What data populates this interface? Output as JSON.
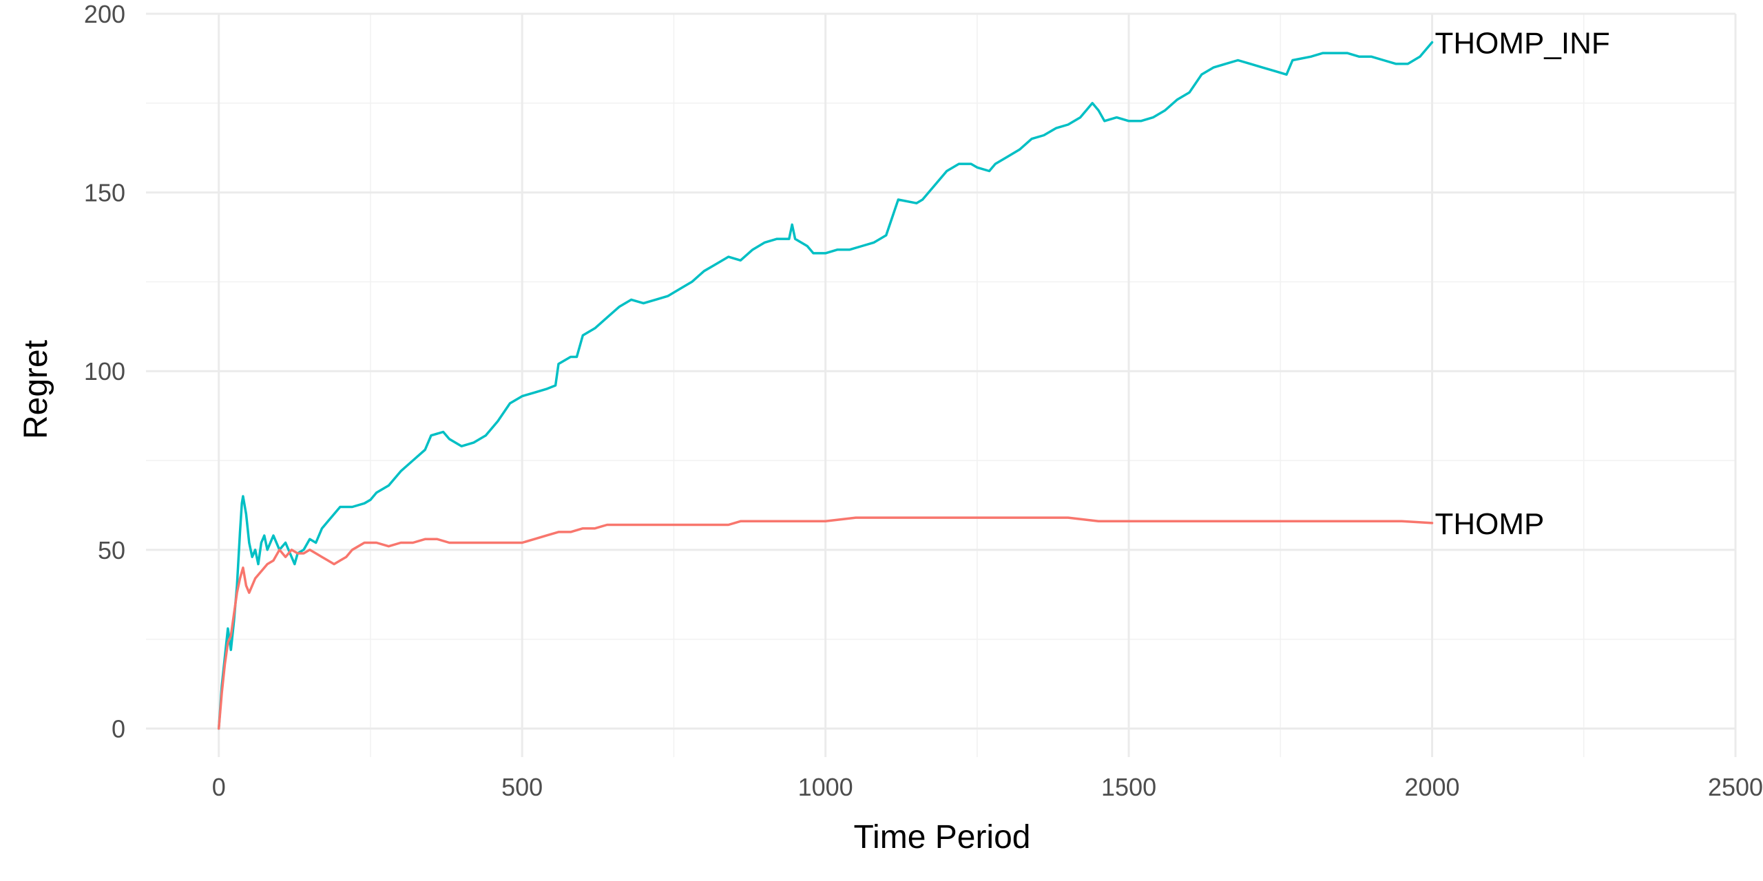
{
  "chart_data": {
    "type": "line",
    "title": "",
    "xlabel": "Time Period",
    "ylabel": "Regret",
    "xlim": [
      -120,
      2500
    ],
    "ylim": [
      -8,
      200
    ],
    "x_ticks": [
      0,
      500,
      1000,
      1500,
      2000,
      2500
    ],
    "x_tick_labels": [
      "0",
      "500",
      "1000",
      "1500",
      "2000",
      "2500"
    ],
    "y_ticks": [
      0,
      50,
      100,
      150,
      200
    ],
    "y_tick_labels": [
      "0",
      "50",
      "100",
      "150",
      "200"
    ],
    "grid": true,
    "legend": "none (series labelled at line ends)",
    "series": [
      {
        "name": "THOMP_INF",
        "color": "#00BFC4",
        "points": [
          [
            0,
            0
          ],
          [
            5,
            12
          ],
          [
            10,
            20
          ],
          [
            15,
            28
          ],
          [
            20,
            22
          ],
          [
            25,
            30
          ],
          [
            30,
            40
          ],
          [
            35,
            55
          ],
          [
            38,
            63
          ],
          [
            40,
            65
          ],
          [
            45,
            60
          ],
          [
            50,
            52
          ],
          [
            55,
            48
          ],
          [
            60,
            50
          ],
          [
            65,
            46
          ],
          [
            70,
            52
          ],
          [
            75,
            54
          ],
          [
            80,
            50
          ],
          [
            90,
            54
          ],
          [
            100,
            50
          ],
          [
            110,
            52
          ],
          [
            120,
            48
          ],
          [
            125,
            46
          ],
          [
            130,
            49
          ],
          [
            140,
            50
          ],
          [
            150,
            53
          ],
          [
            160,
            52
          ],
          [
            170,
            56
          ],
          [
            180,
            58
          ],
          [
            190,
            60
          ],
          [
            200,
            62
          ],
          [
            220,
            62
          ],
          [
            240,
            63
          ],
          [
            250,
            64
          ],
          [
            260,
            66
          ],
          [
            280,
            68
          ],
          [
            300,
            72
          ],
          [
            320,
            75
          ],
          [
            340,
            78
          ],
          [
            350,
            82
          ],
          [
            370,
            83
          ],
          [
            380,
            81
          ],
          [
            400,
            79
          ],
          [
            420,
            80
          ],
          [
            440,
            82
          ],
          [
            460,
            86
          ],
          [
            480,
            91
          ],
          [
            500,
            93
          ],
          [
            520,
            94
          ],
          [
            540,
            95
          ],
          [
            555,
            96
          ],
          [
            560,
            102
          ],
          [
            580,
            104
          ],
          [
            590,
            104
          ],
          [
            600,
            110
          ],
          [
            620,
            112
          ],
          [
            640,
            115
          ],
          [
            660,
            118
          ],
          [
            680,
            120
          ],
          [
            700,
            119
          ],
          [
            720,
            120
          ],
          [
            740,
            121
          ],
          [
            760,
            123
          ],
          [
            780,
            125
          ],
          [
            800,
            128
          ],
          [
            820,
            130
          ],
          [
            840,
            132
          ],
          [
            860,
            131
          ],
          [
            880,
            134
          ],
          [
            900,
            136
          ],
          [
            920,
            137
          ],
          [
            940,
            137
          ],
          [
            945,
            141
          ],
          [
            950,
            137
          ],
          [
            970,
            135
          ],
          [
            980,
            133
          ],
          [
            1000,
            133
          ],
          [
            1020,
            134
          ],
          [
            1040,
            134
          ],
          [
            1060,
            135
          ],
          [
            1080,
            136
          ],
          [
            1100,
            138
          ],
          [
            1110,
            143
          ],
          [
            1120,
            148
          ],
          [
            1150,
            147
          ],
          [
            1160,
            148
          ],
          [
            1180,
            152
          ],
          [
            1200,
            156
          ],
          [
            1220,
            158
          ],
          [
            1240,
            158
          ],
          [
            1250,
            157
          ],
          [
            1270,
            156
          ],
          [
            1280,
            158
          ],
          [
            1300,
            160
          ],
          [
            1320,
            162
          ],
          [
            1340,
            165
          ],
          [
            1360,
            166
          ],
          [
            1380,
            168
          ],
          [
            1400,
            169
          ],
          [
            1420,
            171
          ],
          [
            1430,
            173
          ],
          [
            1440,
            175
          ],
          [
            1450,
            173
          ],
          [
            1460,
            170
          ],
          [
            1480,
            171
          ],
          [
            1500,
            170
          ],
          [
            1520,
            170
          ],
          [
            1540,
            171
          ],
          [
            1560,
            173
          ],
          [
            1580,
            176
          ],
          [
            1600,
            178
          ],
          [
            1620,
            183
          ],
          [
            1640,
            185
          ],
          [
            1660,
            186
          ],
          [
            1680,
            187
          ],
          [
            1700,
            186
          ],
          [
            1720,
            185
          ],
          [
            1740,
            184
          ],
          [
            1760,
            183
          ],
          [
            1770,
            187
          ],
          [
            1800,
            188
          ],
          [
            1820,
            189
          ],
          [
            1840,
            189
          ],
          [
            1860,
            189
          ],
          [
            1880,
            188
          ],
          [
            1900,
            188
          ],
          [
            1920,
            187
          ],
          [
            1940,
            186
          ],
          [
            1960,
            186
          ],
          [
            1980,
            188
          ],
          [
            1990,
            190
          ],
          [
            2000,
            192
          ]
        ]
      },
      {
        "name": "THOMP",
        "color": "#F8766D",
        "points": [
          [
            0,
            0
          ],
          [
            5,
            10
          ],
          [
            10,
            18
          ],
          [
            15,
            24
          ],
          [
            20,
            26
          ],
          [
            25,
            32
          ],
          [
            30,
            38
          ],
          [
            35,
            42
          ],
          [
            40,
            45
          ],
          [
            45,
            40
          ],
          [
            50,
            38
          ],
          [
            55,
            40
          ],
          [
            60,
            42
          ],
          [
            70,
            44
          ],
          [
            80,
            46
          ],
          [
            90,
            47
          ],
          [
            100,
            50
          ],
          [
            110,
            48
          ],
          [
            120,
            50
          ],
          [
            130,
            49
          ],
          [
            140,
            49
          ],
          [
            150,
            50
          ],
          [
            160,
            49
          ],
          [
            170,
            48
          ],
          [
            180,
            47
          ],
          [
            190,
            46
          ],
          [
            200,
            47
          ],
          [
            210,
            48
          ],
          [
            220,
            50
          ],
          [
            230,
            51
          ],
          [
            240,
            52
          ],
          [
            260,
            52
          ],
          [
            280,
            51
          ],
          [
            300,
            52
          ],
          [
            320,
            52
          ],
          [
            340,
            53
          ],
          [
            360,
            53
          ],
          [
            380,
            52
          ],
          [
            400,
            52
          ],
          [
            420,
            52
          ],
          [
            440,
            52
          ],
          [
            460,
            52
          ],
          [
            480,
            52
          ],
          [
            500,
            52
          ],
          [
            520,
            53
          ],
          [
            540,
            54
          ],
          [
            560,
            55
          ],
          [
            580,
            55
          ],
          [
            600,
            56
          ],
          [
            620,
            56
          ],
          [
            640,
            57
          ],
          [
            660,
            57
          ],
          [
            680,
            57
          ],
          [
            700,
            57
          ],
          [
            720,
            57
          ],
          [
            740,
            57
          ],
          [
            760,
            57
          ],
          [
            780,
            57
          ],
          [
            800,
            57
          ],
          [
            820,
            57
          ],
          [
            840,
            57
          ],
          [
            860,
            58
          ],
          [
            880,
            58
          ],
          [
            900,
            58
          ],
          [
            920,
            58
          ],
          [
            940,
            58
          ],
          [
            960,
            58
          ],
          [
            980,
            58
          ],
          [
            1000,
            58
          ],
          [
            1050,
            59
          ],
          [
            1100,
            59
          ],
          [
            1150,
            59
          ],
          [
            1200,
            59
          ],
          [
            1250,
            59
          ],
          [
            1300,
            59
          ],
          [
            1350,
            59
          ],
          [
            1400,
            59
          ],
          [
            1450,
            58
          ],
          [
            1500,
            58
          ],
          [
            1550,
            58
          ],
          [
            1600,
            58
          ],
          [
            1650,
            58
          ],
          [
            1700,
            58
          ],
          [
            1750,
            58
          ],
          [
            1800,
            58
          ],
          [
            1850,
            58
          ],
          [
            1900,
            58
          ],
          [
            1950,
            58
          ],
          [
            2000,
            57.5
          ]
        ]
      }
    ]
  }
}
